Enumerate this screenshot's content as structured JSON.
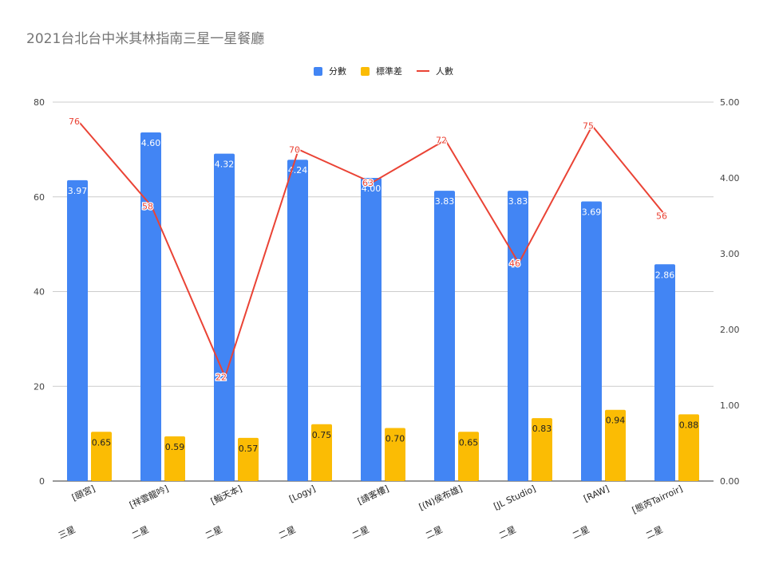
{
  "chart_data": {
    "type": "bar",
    "title": "2021台北台中米其林指南三星一星餐廳",
    "categories": [
      "三星\n[頤宮]",
      "二星\n[祥雲龍吟]",
      "二星\n[鮨天本]",
      "二星\n[Logy]",
      "二星\n[請客樓]",
      "二星\n[(N)侯布雄]",
      "二星\n[JL Studio]",
      "二星\n[RAW]",
      "二星\n[態芮Tairroir]"
    ],
    "category_lines": [
      [
        "三星",
        "[頤宮]"
      ],
      [
        "二星",
        "[祥雲龍吟]"
      ],
      [
        "二星",
        "[鮨天本]"
      ],
      [
        "二星",
        "[Logy]"
      ],
      [
        "二星",
        "[請客樓]"
      ],
      [
        "二星",
        "[(N)侯布雄]"
      ],
      [
        "二星",
        "[JL Studio]"
      ],
      [
        "二星",
        "[RAW]"
      ],
      [
        "二星",
        "[態芮Tairroir]"
      ]
    ],
    "series": [
      {
        "name": "分數",
        "kind": "bar",
        "axis": "right",
        "color": "#4285F4",
        "values": [
          3.97,
          4.6,
          4.32,
          4.24,
          4.0,
          3.83,
          3.83,
          3.69,
          2.86
        ],
        "labels": [
          "3.97",
          "4.60",
          "4.32",
          "4.24",
          "4.00",
          "3.83",
          "3.83",
          "3.69",
          "2.86"
        ]
      },
      {
        "name": "標準差",
        "kind": "bar",
        "axis": "right",
        "color": "#FBBC04",
        "values": [
          0.65,
          0.59,
          0.57,
          0.75,
          0.7,
          0.65,
          0.83,
          0.94,
          0.88
        ],
        "labels": [
          "0.65",
          "0.59",
          "0.57",
          "0.75",
          "0.70",
          "0.65",
          "0.83",
          "0.94",
          "0.88"
        ]
      },
      {
        "name": "人數",
        "kind": "line",
        "axis": "left",
        "color": "#EA4335",
        "values": [
          76,
          58,
          22,
          70,
          63,
          72,
          46,
          75,
          56
        ],
        "labels": [
          "76",
          "58",
          "22",
          "70",
          "63",
          "72",
          "46",
          "75",
          "56"
        ]
      }
    ],
    "y_left": {
      "min": 0,
      "max": 80,
      "ticks": [
        "0",
        "20",
        "40",
        "60",
        "80"
      ],
      "tick_values": [
        0,
        20,
        40,
        60,
        80
      ]
    },
    "y_right": {
      "min": 0,
      "max": 5,
      "ticks": [
        "0.00",
        "1.00",
        "2.00",
        "3.00",
        "4.00",
        "5.00"
      ],
      "tick_values": [
        0,
        1,
        2,
        3,
        4,
        5
      ]
    },
    "grid": true,
    "legend_position": "top-center"
  }
}
